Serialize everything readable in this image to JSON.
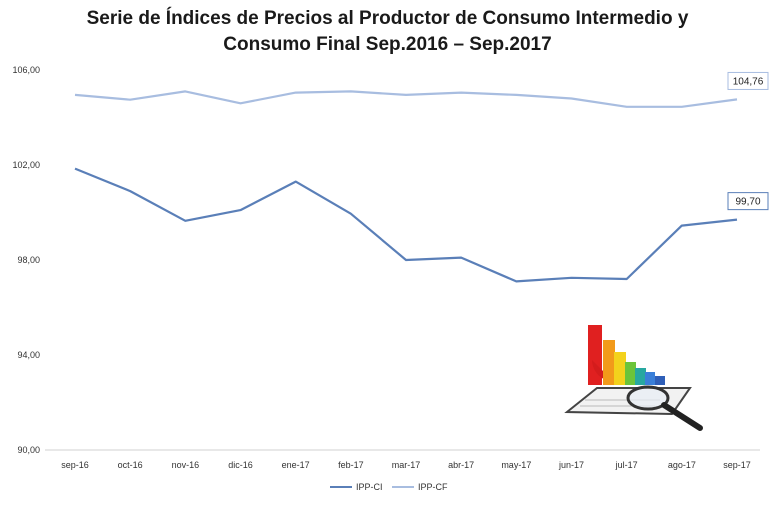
{
  "chart_data": {
    "type": "line",
    "title_line1": "Serie de Índices de Precios al Productor de Consumo Intermedio y",
    "title_line2": "Consumo Final Sep.2016 – Sep.2017",
    "categories": [
      "sep-16",
      "oct-16",
      "nov-16",
      "dic-16",
      "ene-17",
      "feb-17",
      "mar-17",
      "abr-17",
      "may-17",
      "jun-17",
      "jul-17",
      "ago-17",
      "sep-17"
    ],
    "ylim": [
      90,
      106
    ],
    "yticks": [
      "90,00",
      "94,00",
      "98,00",
      "102,00",
      "106,00"
    ],
    "ytick_values": [
      90,
      94,
      98,
      102,
      106
    ],
    "grid": false,
    "legend_position": "bottom",
    "series": [
      {
        "name": "IPP-CI",
        "color": "#5a7fb8",
        "values": [
          101.85,
          100.9,
          99.65,
          100.1,
          101.3,
          99.95,
          98.0,
          98.1,
          97.1,
          97.25,
          97.2,
          99.45,
          99.7
        ],
        "end_label": "99,70"
      },
      {
        "name": "IPP-CF",
        "color": "#a8bde0",
        "values": [
          104.95,
          104.75,
          105.1,
          104.6,
          105.05,
          105.1,
          104.95,
          105.05,
          104.95,
          104.8,
          104.45,
          104.45,
          104.76
        ],
        "end_label": "104,76"
      }
    ]
  },
  "decoration": {
    "icon": "chart-report-magnifier-icon"
  }
}
